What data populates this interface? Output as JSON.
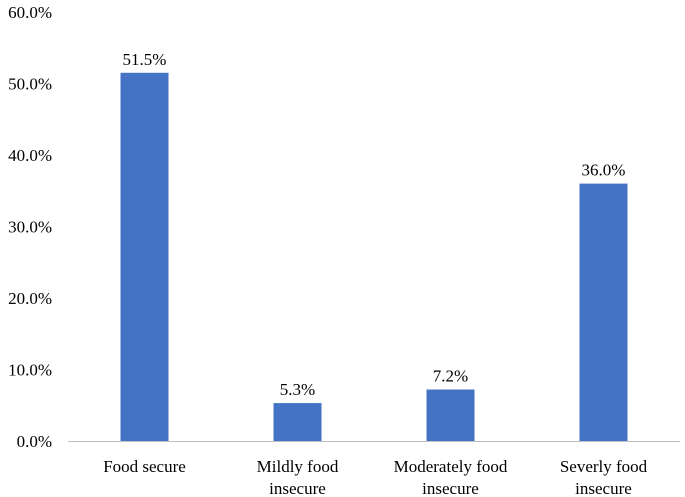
{
  "chart_data": {
    "type": "bar",
    "title": "",
    "xlabel": "",
    "ylabel": "",
    "categories": [
      [
        "Food secure"
      ],
      [
        "Mildly food",
        "insecure"
      ],
      [
        "Moderately food",
        "insecure"
      ],
      [
        "Severly food",
        "insecure"
      ]
    ],
    "values": [
      51.5,
      5.3,
      7.2,
      36.0
    ],
    "value_labels": [
      "51.5%",
      "5.3%",
      "7.2%",
      "36.0%"
    ],
    "ylim": [
      0,
      60
    ],
    "yticks": [
      0,
      10,
      20,
      30,
      40,
      50,
      60
    ],
    "ytick_labels": [
      "0.0%",
      "10.0%",
      "20.0%",
      "30.0%",
      "40.0%",
      "50.0%",
      "60.0%"
    ],
    "grid": false,
    "legend": "none",
    "bar_color": "#4472C4",
    "axis_color": "#bfbfbf"
  }
}
